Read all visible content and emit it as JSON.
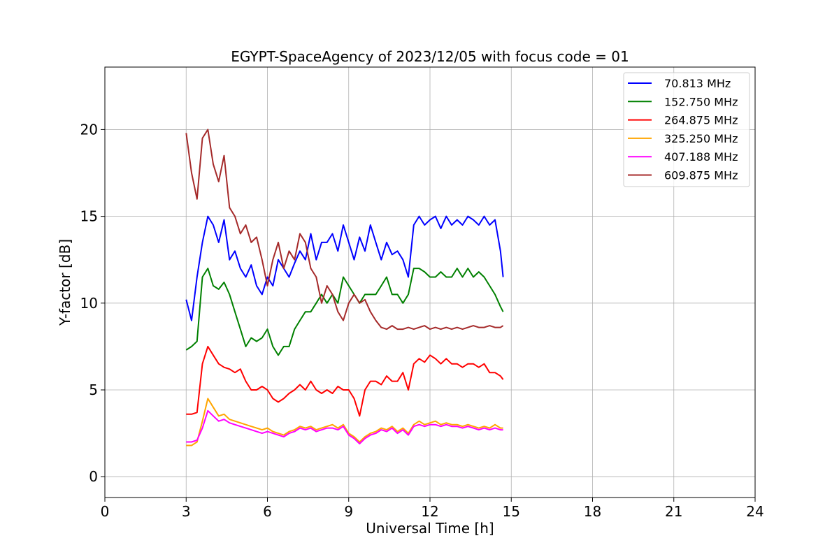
{
  "chart_data": {
    "type": "line",
    "title": "EGYPT-SpaceAgency of 2023/12/05 with focus code = 01",
    "xlabel": "Universal Time [h]",
    "ylabel": "Y-factor [dB]",
    "xlim": [
      0,
      24
    ],
    "ylim": [
      -1.2,
      23.6
    ],
    "xticks": [
      0,
      3,
      6,
      9,
      12,
      15,
      18,
      21,
      24
    ],
    "xtick_labels": [
      "0",
      "3",
      "6",
      "9",
      "12",
      "15",
      "18",
      "21",
      "24"
    ],
    "yticks": [
      0,
      5,
      10,
      15,
      20
    ],
    "ytick_labels": [
      "0",
      "5",
      "10",
      "15",
      "20"
    ],
    "grid": true,
    "legend_position": "top-right",
    "series": [
      {
        "name": " 70.813 MHz",
        "color": "#0000ff",
        "x": [
          3.0,
          3.2,
          3.4,
          3.6,
          3.8,
          4.0,
          4.2,
          4.4,
          4.6,
          4.8,
          5.0,
          5.2,
          5.4,
          5.6,
          5.8,
          6.0,
          6.2,
          6.4,
          6.6,
          6.8,
          7.0,
          7.2,
          7.4,
          7.6,
          7.8,
          8.0,
          8.2,
          8.4,
          8.6,
          8.8,
          9.0,
          9.2,
          9.4,
          9.6,
          9.8,
          10.0,
          10.2,
          10.4,
          10.6,
          10.8,
          11.0,
          11.2,
          11.4,
          11.6,
          11.8,
          12.0,
          12.2,
          12.4,
          12.6,
          12.8,
          13.0,
          13.2,
          13.4,
          13.6,
          13.8,
          14.0,
          14.2,
          14.4,
          14.6,
          14.7
        ],
        "y": [
          10.2,
          9.0,
          11.5,
          13.5,
          15.0,
          14.5,
          13.5,
          14.8,
          12.5,
          13.0,
          12.0,
          11.5,
          12.2,
          11.0,
          10.5,
          11.5,
          11.0,
          12.5,
          12.0,
          11.5,
          12.3,
          13.0,
          12.5,
          14.0,
          12.5,
          13.5,
          13.5,
          14.0,
          13.0,
          14.5,
          13.5,
          12.5,
          13.8,
          13.0,
          14.5,
          13.5,
          12.5,
          13.5,
          12.8,
          13.0,
          12.5,
          11.5,
          14.5,
          15.0,
          14.5,
          14.8,
          15.0,
          14.3,
          15.0,
          14.5,
          14.8,
          14.5,
          15.0,
          14.8,
          14.5,
          15.0,
          14.5,
          14.8,
          13.0,
          11.5
        ]
      },
      {
        "name": "152.750 MHz",
        "color": "#008000",
        "x": [
          3.0,
          3.2,
          3.4,
          3.6,
          3.8,
          4.0,
          4.2,
          4.4,
          4.6,
          4.8,
          5.0,
          5.2,
          5.4,
          5.6,
          5.8,
          6.0,
          6.2,
          6.4,
          6.6,
          6.8,
          7.0,
          7.2,
          7.4,
          7.6,
          7.8,
          8.0,
          8.2,
          8.4,
          8.6,
          8.8,
          9.0,
          9.2,
          9.4,
          9.6,
          9.8,
          10.0,
          10.2,
          10.4,
          10.6,
          10.8,
          11.0,
          11.2,
          11.4,
          11.6,
          11.8,
          12.0,
          12.2,
          12.4,
          12.6,
          12.8,
          13.0,
          13.2,
          13.4,
          13.6,
          13.8,
          14.0,
          14.2,
          14.4,
          14.6,
          14.7
        ],
        "y": [
          7.3,
          7.5,
          7.8,
          11.5,
          12.0,
          11.0,
          10.8,
          11.2,
          10.5,
          9.5,
          8.5,
          7.5,
          8.0,
          7.8,
          8.0,
          8.5,
          7.5,
          7.0,
          7.5,
          7.5,
          8.5,
          9.0,
          9.5,
          9.5,
          10.0,
          10.5,
          10.0,
          10.5,
          10.0,
          11.5,
          11.0,
          10.5,
          10.0,
          10.5,
          10.5,
          10.5,
          11.0,
          11.5,
          10.5,
          10.5,
          10.0,
          10.5,
          12.0,
          12.0,
          11.8,
          11.5,
          11.5,
          11.8,
          11.5,
          11.5,
          12.0,
          11.5,
          12.0,
          11.5,
          11.8,
          11.5,
          11.0,
          10.5,
          9.8,
          9.5
        ]
      },
      {
        "name": "264.875 MHz",
        "color": "#ff0000",
        "x": [
          3.0,
          3.2,
          3.4,
          3.6,
          3.8,
          4.0,
          4.2,
          4.4,
          4.6,
          4.8,
          5.0,
          5.2,
          5.4,
          5.6,
          5.8,
          6.0,
          6.2,
          6.4,
          6.6,
          6.8,
          7.0,
          7.2,
          7.4,
          7.6,
          7.8,
          8.0,
          8.2,
          8.4,
          8.6,
          8.8,
          9.0,
          9.2,
          9.4,
          9.6,
          9.8,
          10.0,
          10.2,
          10.4,
          10.6,
          10.8,
          11.0,
          11.2,
          11.4,
          11.6,
          11.8,
          12.0,
          12.2,
          12.4,
          12.6,
          12.8,
          13.0,
          13.2,
          13.4,
          13.6,
          13.8,
          14.0,
          14.2,
          14.4,
          14.6,
          14.7
        ],
        "y": [
          3.6,
          3.6,
          3.7,
          6.5,
          7.5,
          7.0,
          6.5,
          6.3,
          6.2,
          6.0,
          6.2,
          5.5,
          5.0,
          5.0,
          5.2,
          5.0,
          4.5,
          4.3,
          4.5,
          4.8,
          5.0,
          5.3,
          5.0,
          5.5,
          5.0,
          4.8,
          5.0,
          4.8,
          5.2,
          5.0,
          5.0,
          4.5,
          3.5,
          5.0,
          5.5,
          5.5,
          5.3,
          5.8,
          5.5,
          5.5,
          6.0,
          5.0,
          6.5,
          6.8,
          6.6,
          7.0,
          6.8,
          6.5,
          6.8,
          6.5,
          6.5,
          6.3,
          6.5,
          6.5,
          6.3,
          6.5,
          6.0,
          6.0,
          5.8,
          5.6
        ]
      },
      {
        "name": "325.250 MHz",
        "color": "#ffa500",
        "x": [
          3.0,
          3.2,
          3.4,
          3.6,
          3.8,
          4.0,
          4.2,
          4.4,
          4.6,
          4.8,
          5.0,
          5.2,
          5.4,
          5.6,
          5.8,
          6.0,
          6.2,
          6.4,
          6.6,
          6.8,
          7.0,
          7.2,
          7.4,
          7.6,
          7.8,
          8.0,
          8.2,
          8.4,
          8.6,
          8.8,
          9.0,
          9.2,
          9.4,
          9.6,
          9.8,
          10.0,
          10.2,
          10.4,
          10.6,
          10.8,
          11.0,
          11.2,
          11.4,
          11.6,
          11.8,
          12.0,
          12.2,
          12.4,
          12.6,
          12.8,
          13.0,
          13.2,
          13.4,
          13.6,
          13.8,
          14.0,
          14.2,
          14.4,
          14.6,
          14.7
        ],
        "y": [
          1.8,
          1.8,
          2.0,
          3.2,
          4.5,
          4.0,
          3.5,
          3.6,
          3.3,
          3.2,
          3.1,
          3.0,
          2.9,
          2.8,
          2.7,
          2.8,
          2.6,
          2.5,
          2.4,
          2.6,
          2.7,
          2.9,
          2.8,
          2.9,
          2.7,
          2.8,
          2.9,
          3.0,
          2.8,
          3.0,
          2.5,
          2.3,
          2.0,
          2.3,
          2.5,
          2.6,
          2.8,
          2.7,
          2.9,
          2.6,
          2.8,
          2.5,
          3.0,
          3.2,
          3.0,
          3.1,
          3.2,
          3.0,
          3.1,
          3.0,
          3.0,
          2.9,
          3.0,
          2.9,
          2.8,
          2.9,
          2.8,
          3.0,
          2.8,
          2.8
        ]
      },
      {
        "name": "407.188 MHz",
        "color": "#ff00ff",
        "x": [
          3.0,
          3.2,
          3.4,
          3.6,
          3.8,
          4.0,
          4.2,
          4.4,
          4.6,
          4.8,
          5.0,
          5.2,
          5.4,
          5.6,
          5.8,
          6.0,
          6.2,
          6.4,
          6.6,
          6.8,
          7.0,
          7.2,
          7.4,
          7.6,
          7.8,
          8.0,
          8.2,
          8.4,
          8.6,
          8.8,
          9.0,
          9.2,
          9.4,
          9.6,
          9.8,
          10.0,
          10.2,
          10.4,
          10.6,
          10.8,
          11.0,
          11.2,
          11.4,
          11.6,
          11.8,
          12.0,
          12.2,
          12.4,
          12.6,
          12.8,
          13.0,
          13.2,
          13.4,
          13.6,
          13.8,
          14.0,
          14.2,
          14.4,
          14.6,
          14.7
        ],
        "y": [
          2.0,
          2.0,
          2.1,
          2.8,
          3.8,
          3.5,
          3.2,
          3.3,
          3.1,
          3.0,
          2.9,
          2.8,
          2.7,
          2.6,
          2.5,
          2.6,
          2.5,
          2.4,
          2.3,
          2.5,
          2.6,
          2.8,
          2.7,
          2.8,
          2.6,
          2.7,
          2.8,
          2.8,
          2.7,
          2.9,
          2.4,
          2.2,
          1.9,
          2.2,
          2.4,
          2.5,
          2.7,
          2.6,
          2.8,
          2.5,
          2.7,
          2.4,
          2.9,
          3.0,
          2.9,
          3.0,
          3.0,
          2.9,
          3.0,
          2.9,
          2.9,
          2.8,
          2.9,
          2.8,
          2.7,
          2.8,
          2.7,
          2.8,
          2.7,
          2.7
        ]
      },
      {
        "name": "609.875 MHz",
        "color": "#a52a2a",
        "x": [
          3.0,
          3.2,
          3.4,
          3.6,
          3.8,
          4.0,
          4.2,
          4.4,
          4.6,
          4.8,
          5.0,
          5.2,
          5.4,
          5.6,
          5.8,
          6.0,
          6.2,
          6.4,
          6.6,
          6.8,
          7.0,
          7.2,
          7.4,
          7.6,
          7.8,
          8.0,
          8.2,
          8.4,
          8.6,
          8.8,
          9.0,
          9.2,
          9.4,
          9.6,
          9.8,
          10.0,
          10.2,
          10.4,
          10.6,
          10.8,
          11.0,
          11.2,
          11.4,
          11.6,
          11.8,
          12.0,
          12.2,
          12.4,
          12.6,
          12.8,
          13.0,
          13.2,
          13.4,
          13.6,
          13.8,
          14.0,
          14.2,
          14.4,
          14.6,
          14.7
        ],
        "y": [
          19.8,
          17.5,
          16.0,
          19.5,
          20.0,
          18.0,
          17.0,
          18.5,
          15.5,
          15.0,
          14.0,
          14.5,
          13.5,
          13.8,
          12.5,
          11.0,
          12.5,
          13.5,
          12.0,
          13.0,
          12.5,
          14.0,
          13.5,
          12.0,
          11.5,
          10.0,
          11.0,
          10.5,
          9.5,
          9.0,
          10.0,
          10.5,
          10.0,
          10.2,
          9.5,
          9.0,
          8.6,
          8.5,
          8.7,
          8.5,
          8.5,
          8.6,
          8.5,
          8.6,
          8.7,
          8.5,
          8.6,
          8.5,
          8.6,
          8.5,
          8.6,
          8.5,
          8.6,
          8.7,
          8.6,
          8.6,
          8.7,
          8.6,
          8.6,
          8.7
        ]
      }
    ]
  }
}
